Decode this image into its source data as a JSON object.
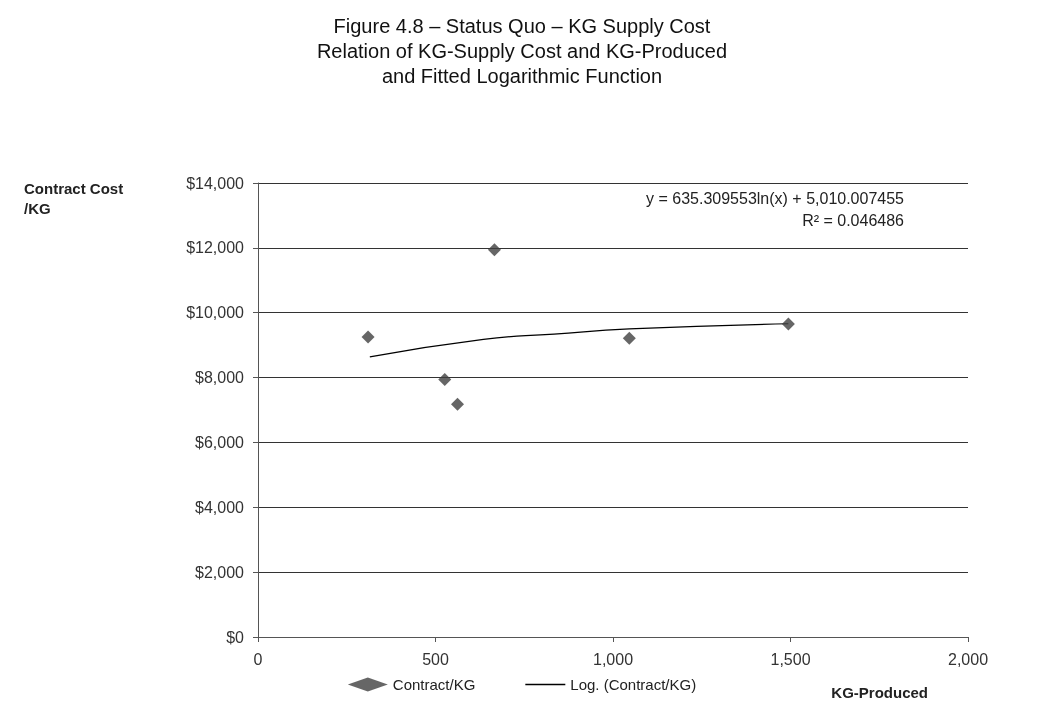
{
  "chart_data": {
    "type": "scatter",
    "title": "Figure 4.8 – Status Quo – KG Supply Cost\nRelation of KG-Supply Cost and KG-Produced\nand Fitted Logarithmic Function",
    "xlabel": "KG-Produced",
    "ylabel": "Contract Cost\n/KG",
    "series": [
      {
        "name": "Contract/KG",
        "marker": "diamond",
        "color": "#404040",
        "x": [
          310,
          526,
          562,
          666,
          1046,
          1494
        ],
        "values": [
          9250,
          7940,
          7180,
          11940,
          9210,
          9650
        ]
      },
      {
        "name": "Log. (Contract/KG)",
        "type": "line",
        "color": "#000000",
        "x": [
          315,
          635,
          834,
          1046,
          1494
        ],
        "values": [
          8640,
          9180,
          9340,
          9500,
          9660
        ]
      }
    ],
    "annotations": [
      "y = 635.309553ln(x) + 5,010.007455",
      "R² = 0.046486"
    ],
    "xlim": [
      0,
      2000
    ],
    "xticks": [
      0,
      500,
      {
        "value": 1000,
        "label": "1,000"
      },
      {
        "value": 1500,
        "label": "1,500"
      },
      {
        "value": 2000,
        "label": "2,000"
      }
    ],
    "ylim": [
      0,
      14000
    ],
    "yticks": [
      {
        "value": 0,
        "label": "$0"
      },
      {
        "value": 2000,
        "label": "$2,000"
      },
      {
        "value": 4000,
        "label": "$4,000"
      },
      {
        "value": 6000,
        "label": "$6,000"
      },
      {
        "value": 8000,
        "label": "$8,000"
      },
      {
        "value": 10000,
        "label": "$10,000"
      },
      {
        "value": 12000,
        "label": "$12,000"
      },
      {
        "value": 14000,
        "label": "$14,000"
      }
    ],
    "grid": "y",
    "legend": "bottom",
    "line_style": "solid"
  }
}
